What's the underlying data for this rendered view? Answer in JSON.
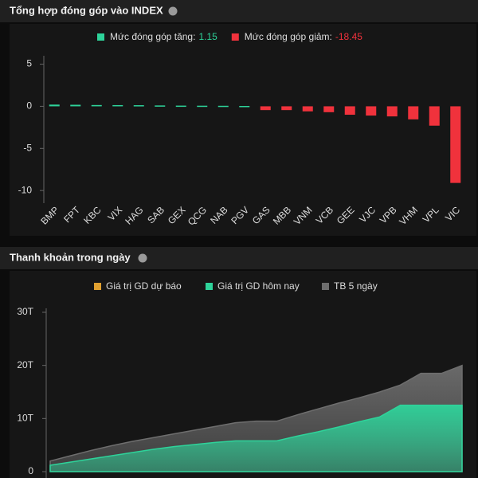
{
  "chart_data": [
    {
      "type": "bar",
      "title": "Tổng hợp đóng góp vào INDEX",
      "categories": [
        "BMP",
        "FPT",
        "KBC",
        "VIX",
        "HAG",
        "SAB",
        "GEX",
        "QCG",
        "NAB",
        "PGV",
        "GAS",
        "MBB",
        "VNM",
        "VCB",
        "GEE",
        "VJC",
        "VPB",
        "VHM",
        "VPL",
        "VIC"
      ],
      "series": [
        {
          "name": "Mức đóng góp tăng:",
          "total": 1.15,
          "color": "#2ed39a",
          "values": [
            0.2,
            0.18,
            0.15,
            0.14,
            0.13,
            0.1,
            0.08,
            0.07,
            0.06,
            0.04,
            null,
            null,
            null,
            null,
            null,
            null,
            null,
            null,
            null,
            null
          ]
        },
        {
          "name": "Mức đóng góp giảm:",
          "total": -18.45,
          "color": "#f0323c",
          "values": [
            null,
            null,
            null,
            null,
            null,
            null,
            null,
            null,
            null,
            null,
            -0.45,
            -0.45,
            -0.6,
            -0.7,
            -1.0,
            -1.1,
            -1.2,
            -1.55,
            -2.3,
            -9.1
          ]
        }
      ],
      "ylim": [
        -11.5,
        6
      ],
      "yticks": [
        5,
        0,
        -5,
        -10
      ]
    },
    {
      "type": "area",
      "title": "Thanh khoản trong ngày",
      "series": [
        {
          "name": "Giá trị GD dự báo",
          "color": "#e0a030",
          "values": [
            null,
            null,
            null,
            null,
            null,
            null,
            null,
            null,
            null,
            null,
            null,
            null,
            null,
            null,
            null,
            null,
            null,
            null,
            null,
            null,
            null
          ]
        },
        {
          "name": "Giá trị GD hôm nay",
          "color": "#2ed39a",
          "values": [
            1.2,
            1.8,
            2.4,
            3.0,
            3.6,
            4.2,
            4.7,
            5.1,
            5.5,
            5.8,
            5.8,
            5.8,
            6.7,
            7.5,
            8.4,
            9.4,
            10.3,
            12.5,
            12.5,
            12.5,
            12.5
          ]
        },
        {
          "name": "TB 5 ngày",
          "color": "#6e6e6e",
          "values": [
            2.0,
            3.0,
            4.0,
            4.9,
            5.7,
            6.4,
            7.1,
            7.8,
            8.5,
            9.2,
            9.5,
            9.5,
            10.7,
            11.8,
            12.9,
            13.9,
            15.0,
            16.3,
            18.5,
            18.5,
            20.0
          ]
        }
      ],
      "ylim": [
        0,
        30
      ],
      "yticks": [
        {
          "value": 30,
          "label": "30T"
        },
        {
          "value": 20,
          "label": "20T"
        },
        {
          "value": 10,
          "label": "10T"
        },
        0
      ]
    }
  ]
}
